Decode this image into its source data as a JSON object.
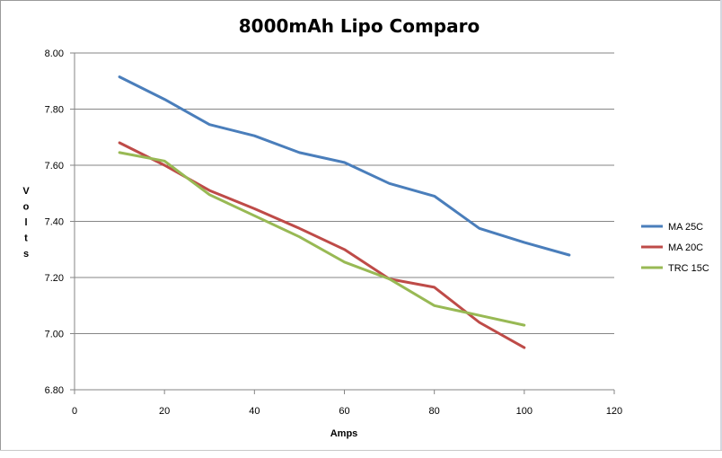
{
  "chart_data": {
    "type": "line",
    "title": "8000mAh Lipo Comparo",
    "xlabel": "Amps",
    "ylabel": "Volts",
    "xlim": [
      0,
      120
    ],
    "ylim": [
      6.8,
      8.0
    ],
    "x_ticks": [
      "0",
      "20",
      "40",
      "60",
      "80",
      "100",
      "120"
    ],
    "y_ticks": [
      "6.80",
      "7.00",
      "7.20",
      "7.40",
      "7.60",
      "7.80",
      "8.00"
    ],
    "grid": "horizontal major gridlines",
    "legend_position": "right",
    "series": [
      {
        "name": "MA 25C",
        "color": "#4a7ebb",
        "x": [
          10,
          20,
          30,
          40,
          50,
          60,
          70,
          80,
          90,
          100,
          110
        ],
        "y": [
          7.915,
          7.835,
          7.745,
          7.705,
          7.645,
          7.61,
          7.535,
          7.49,
          7.375,
          7.325,
          7.28
        ]
      },
      {
        "name": "MA 20C",
        "color": "#be4b48",
        "x": [
          10,
          20,
          30,
          40,
          50,
          60,
          70,
          80,
          90,
          100
        ],
        "y": [
          7.68,
          7.6,
          7.51,
          7.445,
          7.375,
          7.3,
          7.195,
          7.165,
          7.04,
          6.95
        ]
      },
      {
        "name": "TRC 15C",
        "color": "#98b954",
        "x": [
          10,
          20,
          30,
          40,
          50,
          60,
          70,
          80,
          90,
          100
        ],
        "y": [
          7.645,
          7.615,
          7.495,
          7.42,
          7.345,
          7.255,
          7.195,
          7.1,
          7.065,
          7.03
        ]
      }
    ]
  }
}
